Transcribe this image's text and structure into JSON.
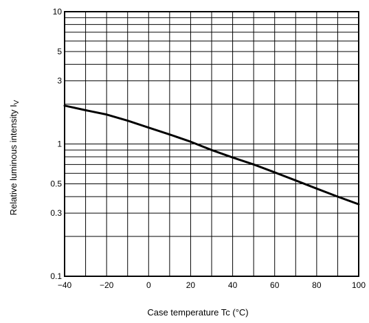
{
  "chart_data": {
    "type": "line",
    "title": "",
    "xlabel": "Case temperature   Tc   (°C)",
    "ylabel": "Relative luminous intensity   I",
    "ylabel_subscript": "V",
    "xlim": [
      -40,
      100
    ],
    "ylim": [
      0.1,
      10
    ],
    "yscale": "log",
    "grid": true,
    "x_ticks": [
      -40,
      -20,
      0,
      20,
      40,
      60,
      80,
      100
    ],
    "x_tick_labels": [
      "−40",
      "−20",
      "0",
      "20",
      "40",
      "60",
      "80",
      "100"
    ],
    "y_ticks": [
      0.1,
      0.3,
      0.5,
      1,
      3,
      5,
      10
    ],
    "y_tick_labels": [
      "0.1",
      "0.3",
      "0.5",
      "1",
      "3",
      "5",
      "10"
    ],
    "series": [
      {
        "x": [
          -40,
          -30,
          -20,
          -10,
          0,
          10,
          20,
          30,
          40,
          50,
          60,
          70,
          80,
          90,
          100
        ],
        "y": [
          1.95,
          1.8,
          1.67,
          1.5,
          1.33,
          1.18,
          1.04,
          0.9,
          0.79,
          0.7,
          0.61,
          0.53,
          0.46,
          0.4,
          0.35
        ]
      }
    ]
  }
}
